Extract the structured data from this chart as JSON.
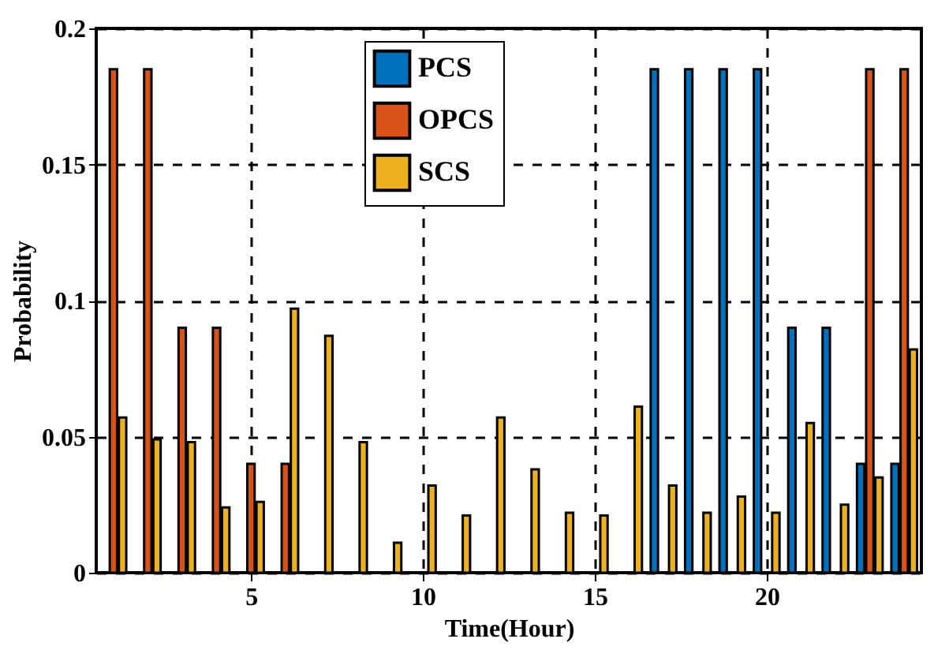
{
  "chart_data": {
    "type": "bar",
    "xlabel": "Time(Hour)",
    "ylabel": "Probability",
    "x": [
      1,
      2,
      3,
      4,
      5,
      6,
      7,
      8,
      9,
      10,
      11,
      12,
      13,
      14,
      15,
      16,
      17,
      18,
      19,
      20,
      21,
      22,
      23,
      24
    ],
    "series": [
      {
        "name": "PCS",
        "color": "#0072bd",
        "values": [
          0,
          0,
          0,
          0,
          0,
          0,
          0,
          0,
          0,
          0,
          0,
          0,
          0,
          0,
          0,
          0,
          0.185,
          0.185,
          0.185,
          0.185,
          0.09,
          0.09,
          0.04,
          0.04
        ]
      },
      {
        "name": "OPCS",
        "color": "#d95319",
        "values": [
          0.185,
          0.185,
          0.09,
          0.09,
          0.04,
          0.04,
          0,
          0,
          0,
          0,
          0,
          0,
          0,
          0,
          0,
          0,
          0,
          0,
          0,
          0,
          0,
          0,
          0.185,
          0.185
        ]
      },
      {
        "name": "SCS",
        "color": "#edb120",
        "values": [
          0.057,
          0.049,
          0.048,
          0.024,
          0.026,
          0.097,
          0.087,
          0.048,
          0.011,
          0.032,
          0.021,
          0.057,
          0.038,
          0.022,
          0.021,
          0.061,
          0.032,
          0.022,
          0.028,
          0.022,
          0.055,
          0.025,
          0.035,
          0.082
        ]
      }
    ],
    "xlim": [
      0.5,
      24.5
    ],
    "xticks": [
      5,
      10,
      15,
      20
    ],
    "ylim": [
      0,
      0.2
    ],
    "yticks": [
      0,
      0.05,
      0.1,
      0.15,
      0.2
    ],
    "grid": true,
    "line_style": "dashed",
    "legend": "top"
  }
}
